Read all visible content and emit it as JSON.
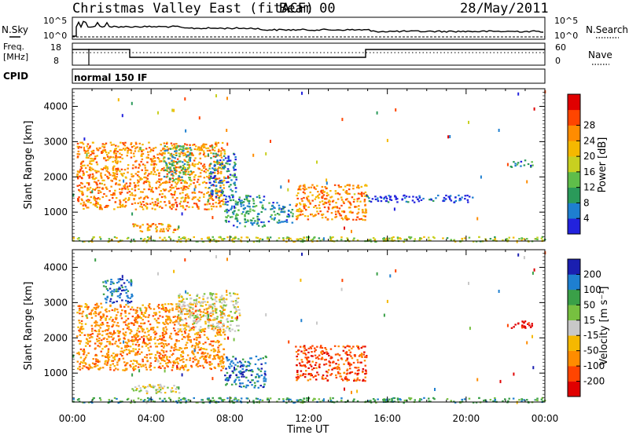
{
  "header": {
    "station": "Christmas Valley East (fitACF)",
    "beam": "Beam 00",
    "date": "28/May/2011"
  },
  "summary": {
    "nsky_label": "N.Sky",
    "nsearch_label": "N.Search",
    "nsky_ticks": [
      "10^5",
      "10^0"
    ],
    "nsearch_ticks": [
      "10^5",
      "10^0"
    ],
    "freq_label": "Freq.",
    "freq_unit": "[MHz]",
    "freq_ticks": [
      "18",
      "8"
    ],
    "nave_label": "Nave",
    "nave_ticks": [
      "60",
      "0"
    ],
    "cpid_label": "CPID",
    "cpid_value": "normal 150 IF"
  },
  "chart_data": [
    {
      "type": "heatmap",
      "name": "power",
      "ylabel": "Slant Range [km]",
      "xlabel": "Time UT",
      "ylim": [
        180,
        4500
      ],
      "xlim": [
        0,
        24
      ],
      "yticks": [
        "1000",
        "2000",
        "3000",
        "4000"
      ],
      "xticks": [
        "00:00",
        "04:00",
        "08:00",
        "12:00",
        "16:00",
        "20:00",
        "00:00"
      ],
      "colorbar": {
        "label": "Power [dB]",
        "ticks": [
          "4",
          "8",
          "12",
          "16",
          "20",
          "24",
          "28"
        ],
        "colors": [
          "#2222dd",
          "#1e7fd0",
          "#2a9a5a",
          "#5fbd4a",
          "#c8d020",
          "#f5b800",
          "#ff8c00",
          "#ff4500",
          "#e00000"
        ]
      },
      "echo_regions": [
        {
          "t0": 0.2,
          "t1": 7.7,
          "r0": 1100,
          "r1": 3000,
          "peak_dB": 28
        },
        {
          "t0": 4.6,
          "t1": 6.0,
          "r0": 1900,
          "r1": 2900,
          "peak_dB": 14
        },
        {
          "t0": 6.9,
          "t1": 8.3,
          "r0": 1400,
          "r1": 2700,
          "peak_dB": 10
        },
        {
          "t0": 3.0,
          "t1": 5.5,
          "r0": 450,
          "r1": 700,
          "peak_dB": 26
        },
        {
          "t0": 7.7,
          "t1": 9.8,
          "r0": 600,
          "r1": 1500,
          "peak_dB": 12
        },
        {
          "t0": 9.9,
          "t1": 11.2,
          "r0": 700,
          "r1": 1300,
          "peak_dB": 12
        },
        {
          "t0": 11.3,
          "t1": 14.9,
          "r0": 800,
          "r1": 1800,
          "peak_dB": 28
        },
        {
          "t0": 14.9,
          "t1": 20.3,
          "r0": 1300,
          "r1": 1500,
          "peak_dB": 6
        },
        {
          "t0": 22.2,
          "t1": 23.4,
          "r0": 2300,
          "r1": 2500,
          "peak_dB": 12
        },
        {
          "t0": 0.0,
          "t1": 24.0,
          "r0": 180,
          "r1": 320,
          "peak_dB": 20
        }
      ]
    },
    {
      "type": "heatmap",
      "name": "velocity",
      "ylabel": "Slant Range [km]",
      "xlabel": "Time UT",
      "ylim": [
        180,
        4500
      ],
      "xlim": [
        0,
        24
      ],
      "yticks": [
        "1000",
        "2000",
        "3000",
        "4000"
      ],
      "xticks": [
        "00:00",
        "04:00",
        "08:00",
        "12:00",
        "16:00",
        "20:00",
        "00:00"
      ],
      "colorbar": {
        "label": "Velocity [m s⁻¹]",
        "ticks": [
          "200",
          "100",
          "50",
          "15",
          "-15",
          "-50",
          "-100",
          "-200"
        ],
        "colors": [
          "#1a1fb0",
          "#1e7fd0",
          "#3aa048",
          "#77c040",
          "#c8c8c8",
          "#f5b800",
          "#ff8c00",
          "#ff4500",
          "#e00000"
        ]
      },
      "echo_regions": [
        {
          "t0": 0.2,
          "t1": 7.7,
          "r0": 1100,
          "r1": 3000,
          "vel": -50
        },
        {
          "t0": 1.5,
          "t1": 3.0,
          "r0": 3000,
          "r1": 3700,
          "vel": 100
        },
        {
          "t0": 5.3,
          "t1": 8.5,
          "r0": 2200,
          "r1": 3300,
          "vel": 0
        },
        {
          "t0": 3.0,
          "t1": 5.5,
          "r0": 450,
          "r1": 700,
          "vel": 0
        },
        {
          "t0": 7.7,
          "t1": 9.8,
          "r0": 600,
          "r1": 1500,
          "vel": 100
        },
        {
          "t0": 11.3,
          "t1": 14.9,
          "r0": 800,
          "r1": 1800,
          "vel": -100
        },
        {
          "t0": 22.2,
          "t1": 23.4,
          "r0": 2300,
          "r1": 2500,
          "vel": -200
        },
        {
          "t0": 0.0,
          "t1": 24.0,
          "r0": 180,
          "r1": 320,
          "vel": 50
        }
      ]
    }
  ]
}
